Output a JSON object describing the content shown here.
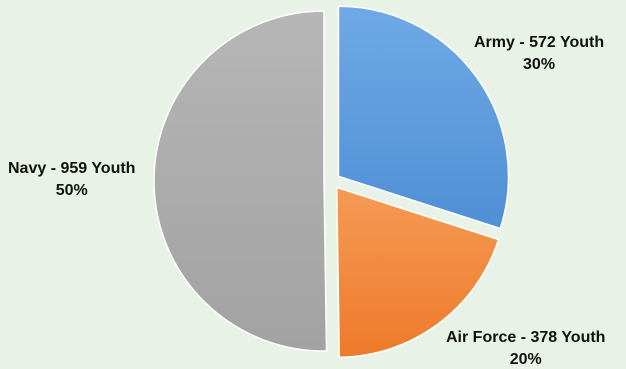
{
  "chart_data": {
    "type": "pie",
    "title": "",
    "slices": [
      {
        "label": "Army",
        "display_label": "Army - 572 Youth",
        "value": 572,
        "percent_label": "30%",
        "color": "#4f8fd6",
        "color_light": "#6fa9e6"
      },
      {
        "label": "Air Force",
        "display_label": "Air Force - 378 Youth",
        "value": 378,
        "percent_label": "20%",
        "color": "#ee7a2a",
        "color_light": "#f59a55"
      },
      {
        "label": "Navy",
        "display_label": "Navy - 959 Youth",
        "value": 959,
        "percent_label": "50%",
        "color": "#a2a2a2",
        "color_light": "#b6b6b6"
      }
    ],
    "start_angle_deg": 0,
    "direction": "clockwise",
    "exploded": true
  }
}
